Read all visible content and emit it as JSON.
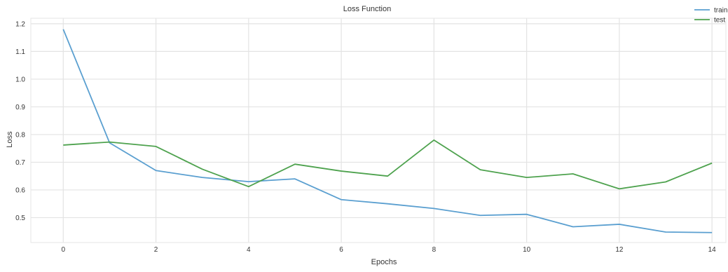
{
  "chart_data": {
    "type": "line",
    "title": "Loss Function",
    "xlabel": "Epochs",
    "ylabel": "Loss",
    "x": [
      0,
      1,
      2,
      3,
      4,
      5,
      6,
      7,
      8,
      9,
      10,
      11,
      12,
      13,
      14
    ],
    "xlim": [
      -0.7,
      14.3
    ],
    "ylim": [
      0.41,
      1.22
    ],
    "xticks": [
      0,
      2,
      4,
      6,
      8,
      10,
      12,
      14
    ],
    "yticks": [
      0.5,
      0.6,
      0.7,
      0.8,
      0.9,
      1.0,
      1.1,
      1.2
    ],
    "ytick_labels": [
      "0.5",
      "0.6",
      "0.7",
      "0.8",
      "0.9",
      "1.0",
      "1.1",
      "1.2"
    ],
    "grid": true,
    "legend_position": "top-right",
    "series": [
      {
        "name": "train",
        "color": "#5a9fd0",
        "values": [
          1.18,
          0.77,
          0.67,
          0.645,
          0.63,
          0.64,
          0.565,
          0.55,
          0.533,
          0.508,
          0.512,
          0.467,
          0.476,
          0.448,
          0.446
        ]
      },
      {
        "name": "test",
        "color": "#4ea24e",
        "values": [
          0.762,
          0.773,
          0.757,
          0.675,
          0.612,
          0.693,
          0.668,
          0.65,
          0.78,
          0.673,
          0.645,
          0.658,
          0.604,
          0.629,
          0.697
        ]
      }
    ]
  }
}
